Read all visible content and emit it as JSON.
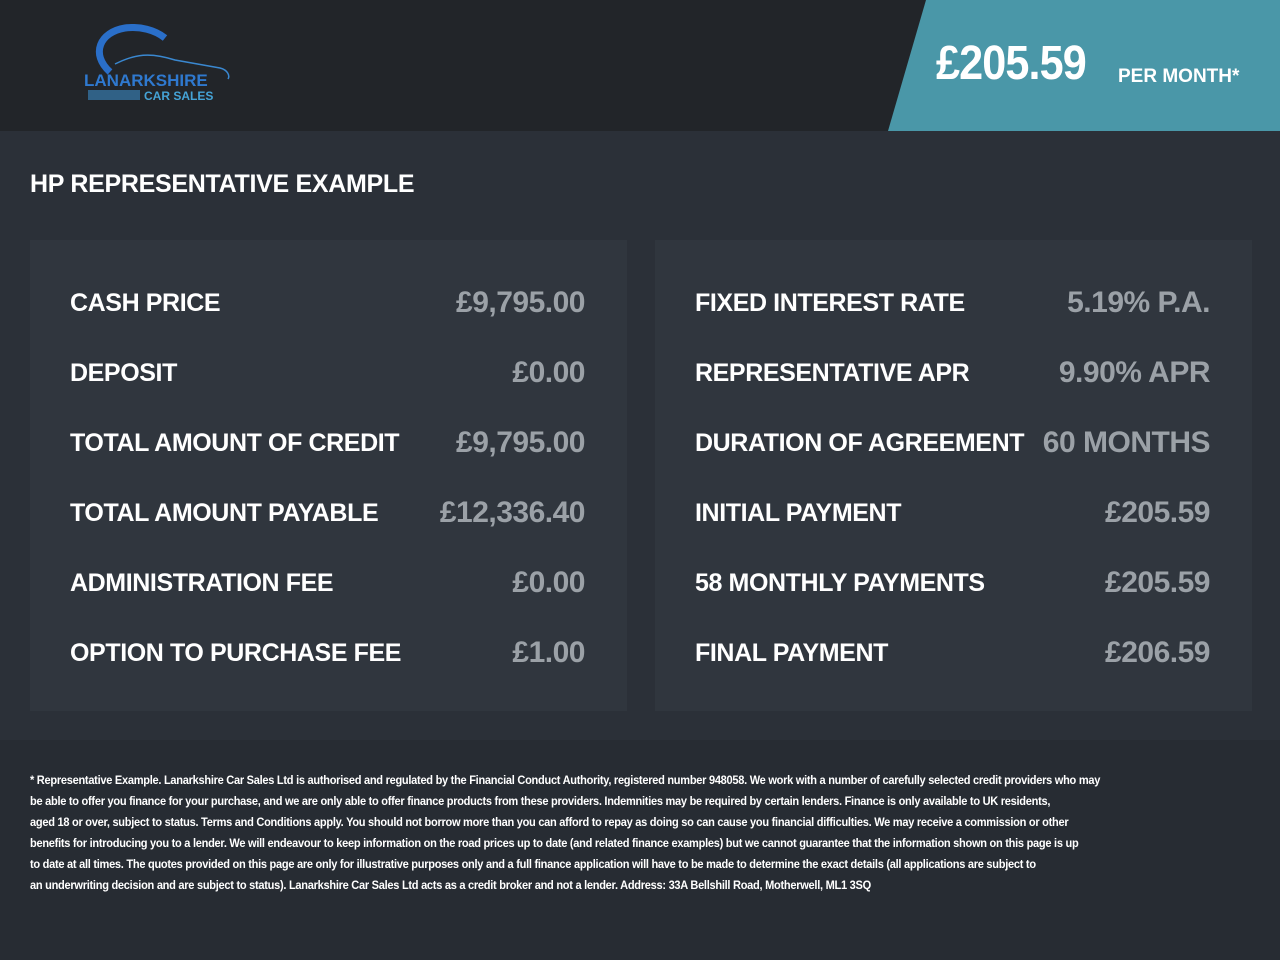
{
  "header": {
    "logo_text": [
      "LANARKSHIRE",
      "CAR SALES"
    ],
    "monthly_price": "£205.59",
    "per_month_label": "PER MONTH*",
    "accent_color": "#4a97a8"
  },
  "title": "HP REPRESENTATIVE EXAMPLE",
  "left": [
    {
      "label": "CASH PRICE",
      "value": "£9,795.00"
    },
    {
      "label": "DEPOSIT",
      "value": "£0.00"
    },
    {
      "label": "TOTAL AMOUNT OF CREDIT",
      "value": "£9,795.00"
    },
    {
      "label": "TOTAL AMOUNT PAYABLE",
      "value": "£12,336.40"
    },
    {
      "label": "ADMINISTRATION FEE",
      "value": "£0.00"
    },
    {
      "label": "OPTION TO PURCHASE FEE",
      "value": "£1.00"
    }
  ],
  "right": [
    {
      "label": "FIXED INTEREST RATE",
      "value": "5.19% P.A."
    },
    {
      "label": "REPRESENTATIVE APR",
      "value": "9.90% APR"
    },
    {
      "label": "DURATION OF AGREEMENT",
      "value": "60 MONTHS"
    },
    {
      "label": "INITIAL PAYMENT",
      "value": "£205.59"
    },
    {
      "label": "58 MONTHLY PAYMENTS",
      "value": "£205.59"
    },
    {
      "label": "FINAL PAYMENT",
      "value": "£206.59"
    }
  ],
  "footer": [
    "* Representative Example. Lanarkshire Car Sales Ltd is authorised and regulated by the Financial Conduct Authority, registered number 948058. We work with a number of carefully selected credit providers who may",
    "be able to offer you finance for your purchase, and we are only able to offer finance products from these providers. Indemnities may be required by certain lenders. Finance is only available to UK residents,",
    "aged 18 or over, subject to status. Terms and Conditions apply. You should not borrow more than you can afford to repay as doing so can cause you financial difficulties. We may receive a commission or other",
    "benefits for introducing you to a lender. We will endeavour to keep information on the road prices up to date (and related finance examples) but we cannot guarantee that the information shown on this page is up",
    "to date at all times. The quotes provided on this page are only for illustrative purposes only and a full finance application will have to be made to determine the exact details (all applications are subject to",
    "an underwriting decision and are subject to status). Lanarkshire Car Sales Ltd acts as a credit broker and not a lender. Address: 33A Bellshill Road, Motherwell, ML1 3SQ"
  ]
}
